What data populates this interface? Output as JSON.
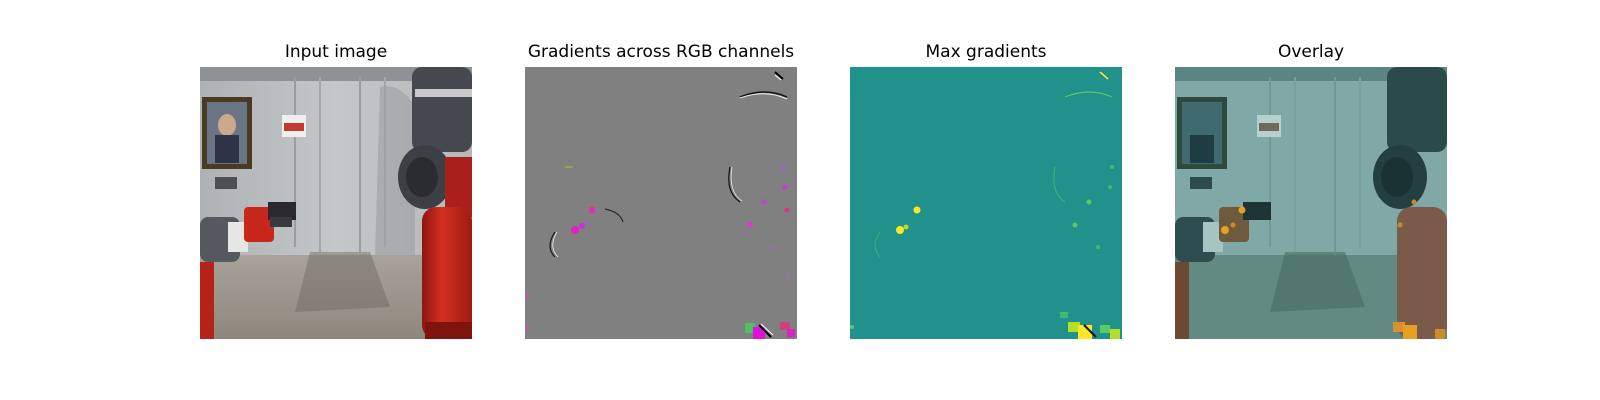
{
  "panels": [
    {
      "title": "Input image"
    },
    {
      "title": "Gradients across RGB channels"
    },
    {
      "title": "Max gradients"
    },
    {
      "title": "Overlay"
    }
  ],
  "colors": {
    "background": "#ffffff",
    "gradient_gray": "#808080",
    "viridis_teal": "#21918c",
    "viridis_green": "#5ec962",
    "viridis_yellow": "#fde725",
    "magenta": "#e020c0",
    "robot_red": "#c8281c"
  }
}
